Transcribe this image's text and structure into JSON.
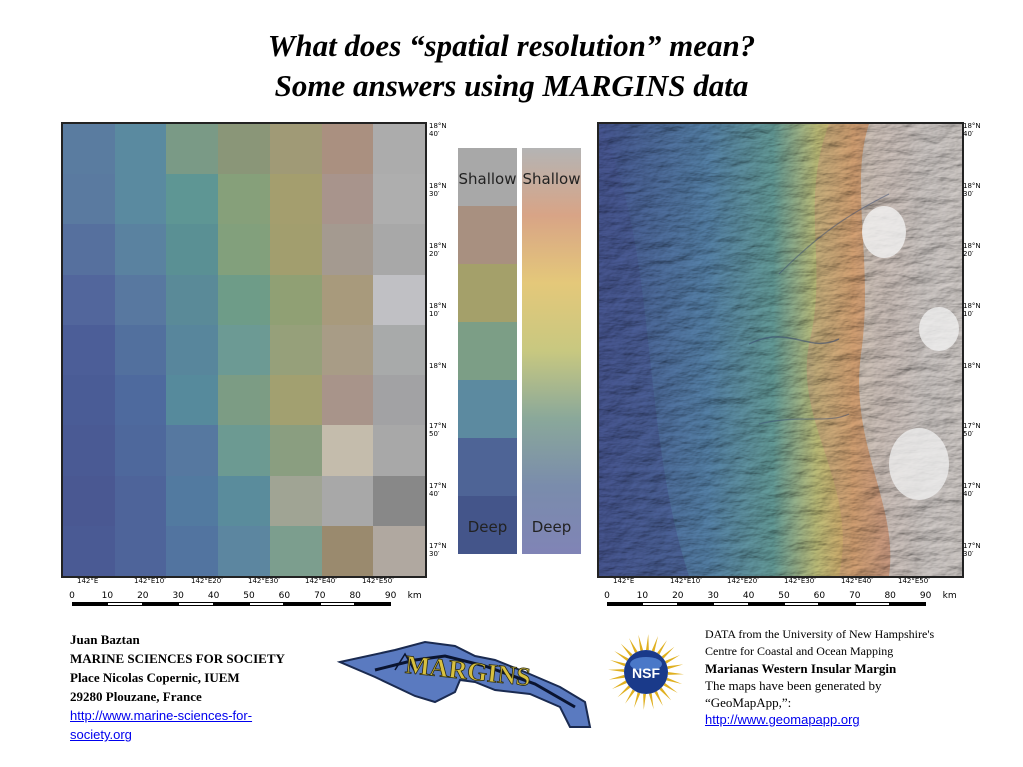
{
  "title": {
    "line1": "What does “spatial resolution” mean?",
    "line2": "Some answers using MARGINS data"
  },
  "latitude_labels": [
    {
      "deg": "18°N",
      "min": "40′"
    },
    {
      "deg": "18°N",
      "min": "30′"
    },
    {
      "deg": "18°N",
      "min": "20′"
    },
    {
      "deg": "18°N",
      "min": "10′"
    },
    {
      "deg": "18°N",
      "min": ""
    },
    {
      "deg": "17°N",
      "min": "50′"
    },
    {
      "deg": "17°N",
      "min": "40′"
    },
    {
      "deg": "17°N",
      "min": "30′"
    }
  ],
  "longitude_labels": [
    "142°E",
    "142°E10′",
    "142°E20′",
    "142°E30′",
    "142°E40′",
    "142°E50′"
  ],
  "scale_bar": {
    "ticks": [
      "0",
      "10",
      "20",
      "30",
      "40",
      "50",
      "60",
      "70",
      "80",
      "90"
    ],
    "unit": "km"
  },
  "depth_legend": {
    "shallow_label": "Shallow",
    "deep_label": "Deep",
    "discrete_colors": [
      "#a8a8a8",
      "#a89080",
      "#a4a06a",
      "#7c9e86",
      "#5c8aa0",
      "#4e6496",
      "#44558a"
    ],
    "continuous_colors": [
      "#b4b4b4",
      "#d8a486",
      "#e4c87a",
      "#c8c880",
      "#8aa89a",
      "#7a8cac",
      "#8084b6"
    ]
  },
  "coarse_grid": {
    "rows": [
      [
        "#5a7ca0",
        "#5a8aa0",
        "#7a9a86",
        "#8a9678",
        "#a09a76",
        "#aa9080",
        "#acacac"
      ],
      [
        "#5a7aa0",
        "#5a8aa0",
        "#5e9694",
        "#86a07a",
        "#a49e6e",
        "#a8948c",
        "#aeaeae"
      ],
      [
        "#56709e",
        "#5a82a0",
        "#5a9094",
        "#82a07c",
        "#a29e6e",
        "#a49a90",
        "#a8a8a8"
      ],
      [
        "#52669c",
        "#5878a0",
        "#5a8a98",
        "#6e9c88",
        "#90a074",
        "#a89a7c",
        "#c0c0c4"
      ],
      [
        "#4c5e98",
        "#52709e",
        "#58869c",
        "#6c9a94",
        "#96a07a",
        "#a89c86",
        "#a8aaaa"
      ],
      [
        "#4a5c96",
        "#4e6a9e",
        "#568a9c",
        "#7c9c84",
        "#a2a070",
        "#a8948a",
        "#a2a2a4"
      ],
      [
        "#4a5a94",
        "#4e689c",
        "#5678a0",
        "#6c9a92",
        "#8a9e80",
        "#c4bcac",
        "#a8a8a8"
      ],
      [
        "#4a5892",
        "#4e649a",
        "#527aa0",
        "#5a8c9c",
        "#a0a494",
        "#a8a8a8",
        "#888888"
      ],
      [
        "#4a5a94",
        "#4e649a",
        "#5274a0",
        "#5c86a0",
        "#7c9e8e",
        "#9a8a6e",
        "#b0a8a0"
      ]
    ]
  },
  "author": {
    "name": "Juan Baztan",
    "org": "MARINE SCIENCES FOR SOCIETY",
    "address1": "Place Nicolas Copernic, IUEM",
    "address2": "29280 Plouzane, France",
    "url_line1": "http://www.marine-sciences-for-",
    "url_line2": "society.org"
  },
  "margins_logo_text": "MARGINS",
  "nsf_logo_text": "NSF",
  "credits": {
    "line1": "DATA from the University of New Hampshire's",
    "line2": "Centre for Coastal and Ocean Mapping",
    "region": "Marianas Western Insular Margin",
    "line3": "The maps have been generated by",
    "line4": "“GeoMapApp,”:",
    "url": "http://www.geomapapp.org"
  }
}
